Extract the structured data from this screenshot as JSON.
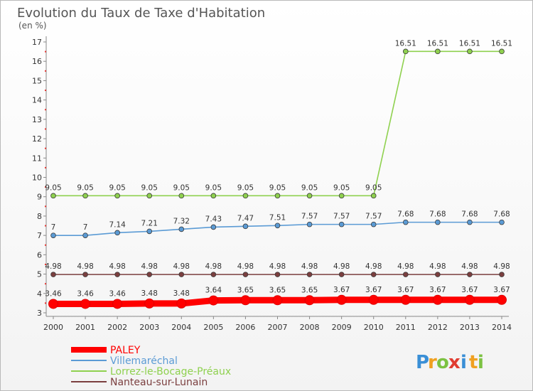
{
  "chart_data": {
    "type": "line",
    "title": "Evolution du Taux de Taxe d'Habitation",
    "subtitle": "(en %)",
    "xlabel": "",
    "ylabel": "",
    "ylim": [
      3,
      17
    ],
    "yticks": [
      3,
      4,
      5,
      6,
      7,
      8,
      9,
      10,
      11,
      12,
      13,
      14,
      15,
      16,
      17
    ],
    "grid": false,
    "legend_position": "bottom-left",
    "x": [
      "2000",
      "2001",
      "2002",
      "2003",
      "2004",
      "2005",
      "2006",
      "2007",
      "2008",
      "2009",
      "2010",
      "2011",
      "2012",
      "2013",
      "2014"
    ],
    "series": [
      {
        "name": "PALEY",
        "color": "#ff0000",
        "values": [
          3.46,
          3.46,
          3.46,
          3.48,
          3.48,
          3.64,
          3.65,
          3.65,
          3.65,
          3.67,
          3.67,
          3.67,
          3.67,
          3.67,
          3.67
        ],
        "labels": [
          "3.46",
          "3.46",
          "3.46",
          "3.48",
          "3.48",
          "3.64",
          "3.65",
          "3.65",
          "3.65",
          "3.67",
          "3.67",
          "3.67",
          "3.67",
          "3.67",
          "3.67"
        ]
      },
      {
        "name": "Villemaréchal",
        "color": "#5b9bd5",
        "values": [
          7,
          7,
          7.14,
          7.21,
          7.32,
          7.43,
          7.47,
          7.51,
          7.57,
          7.57,
          7.57,
          7.68,
          7.68,
          7.68,
          7.68
        ],
        "labels": [
          "7",
          "7",
          "7.14",
          "7.21",
          "7.32",
          "7.43",
          "7.47",
          "7.51",
          "7.57",
          "7.57",
          "7.57",
          "7.68",
          "7.68",
          "7.68",
          "7.68"
        ]
      },
      {
        "name": "Lorrez-le-Bocage-Préaux",
        "color": "#8fd14f",
        "values": [
          9.05,
          9.05,
          9.05,
          9.05,
          9.05,
          9.05,
          9.05,
          9.05,
          9.05,
          9.05,
          9.05,
          16.51,
          16.51,
          16.51,
          16.51
        ],
        "labels": [
          "9.05",
          "9.05",
          "9.05",
          "9.05",
          "9.05",
          "9.05",
          "9.05",
          "9.05",
          "9.05",
          "9.05",
          "9.05",
          "16.51",
          "16.51",
          "16.51",
          "16.51"
        ]
      },
      {
        "name": "Nanteau-sur-Lunain",
        "color": "#7b3f3f",
        "values": [
          4.98,
          4.98,
          4.98,
          4.98,
          4.98,
          4.98,
          4.98,
          4.98,
          4.98,
          4.98,
          4.98,
          4.98,
          4.98,
          4.98,
          4.98
        ],
        "labels": [
          "4.98",
          "4.98",
          "4.98",
          "4.98",
          "4.98",
          "4.98",
          "4.98",
          "4.98",
          "4.98",
          "4.98",
          "4.98",
          "4.98",
          "4.98",
          "4.98",
          "4.98"
        ]
      }
    ]
  },
  "logo": {
    "letters": [
      "P",
      "r",
      "o",
      "x",
      "i",
      "t",
      "i"
    ],
    "colors": [
      "#3a8fd6",
      "#f0a020",
      "#7cc242",
      "#e03c31",
      "#3a8fd6",
      "#f0a020",
      "#7cc242"
    ]
  }
}
